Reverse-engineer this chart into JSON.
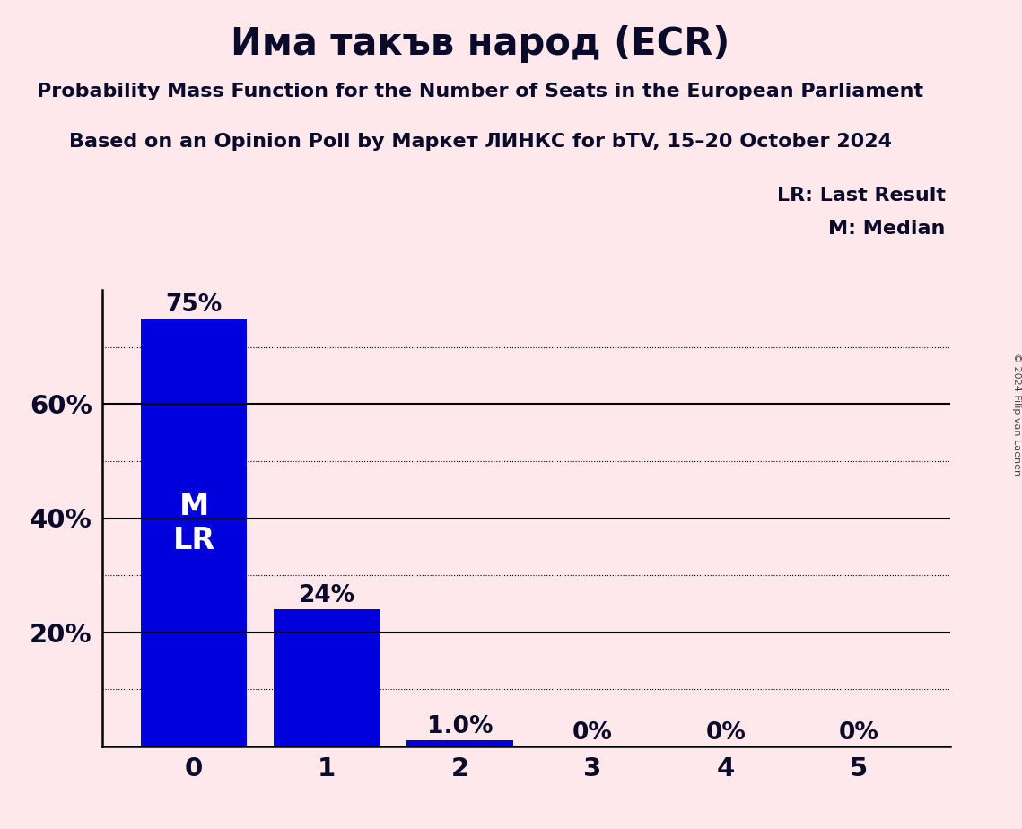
{
  "title": "Има такъв народ (ECR)",
  "subtitle1": "Probability Mass Function for the Number of Seats in the European Parliament",
  "subtitle2": "Based on an Opinion Poll by Маркет ЛИНКС for bTV, 15–20 October 2024",
  "categories": [
    0,
    1,
    2,
    3,
    4,
    5
  ],
  "values": [
    0.75,
    0.24,
    0.01,
    0.0,
    0.0,
    0.0
  ],
  "bar_labels": [
    "75%",
    "24%",
    "1.0%",
    "0%",
    "0%",
    "0%"
  ],
  "bar_color": "#0000DD",
  "background_color": "#FFE8EC",
  "title_color": "#0a0a2a",
  "axis_label_color": "#0a0a2a",
  "bar_text_color_inside": "#FFFFFF",
  "bar_text_color_outside": "#0a0a2a",
  "legend_lr": "LR: Last Result",
  "legend_m": "M: Median",
  "median_seat": 0,
  "last_result_seat": 0,
  "copyright": "© 2024 Filip van Laenen",
  "ylim": [
    0,
    0.8
  ],
  "yticks": [
    0.0,
    0.2,
    0.4,
    0.6
  ],
  "ytick_labels": [
    "",
    "20%",
    "40%",
    "60%"
  ],
  "solid_gridlines": [
    0.2,
    0.4,
    0.6
  ],
  "dotted_gridlines": [
    0.1,
    0.3,
    0.5,
    0.7
  ]
}
